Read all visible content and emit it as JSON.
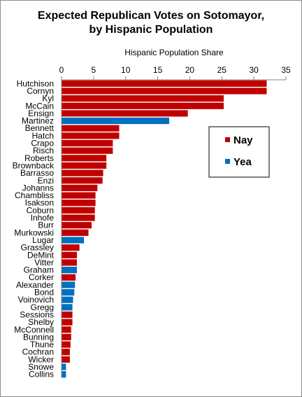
{
  "chart_data": {
    "type": "bar",
    "orientation": "horizontal",
    "title_line1": "Expected Republican Votes on Sotomayor,",
    "title_line2": "by Hispanic Population",
    "xlabel": "Hispanic Population  Share",
    "xlim": [
      0,
      35
    ],
    "xticks": [
      0,
      5,
      10,
      15,
      20,
      25,
      30,
      35
    ],
    "grid": false,
    "legend_position": "right",
    "legend": [
      {
        "key": "Nay",
        "label": "Nay",
        "color": "#c00000"
      },
      {
        "key": "Yea",
        "label": "Yea",
        "color": "#0070c0"
      }
    ],
    "categories": [
      "Hutchison",
      "Cornyn",
      "Kyl",
      "McCain",
      "Ensign",
      "Martinez",
      "Bennett",
      "Hatch",
      "Crapo",
      "Risch",
      "Roberts",
      "Brownback",
      "Barrasso",
      "Enzi",
      "Johanns",
      "Chambliss",
      "Isakson",
      "Coburn",
      "Inhofe",
      "Burr",
      "Murkowski",
      "Lugar",
      "Grassley",
      "DeMint",
      "Vitter",
      "Graham",
      "Corker",
      "Alexander",
      "Bond",
      "Voinovich",
      "Gregg",
      "Sessions",
      "Shelby",
      "McConnell",
      "Bunning",
      "Thune",
      "Cochran",
      "Wicker",
      "Snowe",
      "Collins"
    ],
    "values": [
      32,
      32,
      25.3,
      25.3,
      19.7,
      16.8,
      9.0,
      9.0,
      8.0,
      8.0,
      7.0,
      7.0,
      6.5,
      6.4,
      5.6,
      5.3,
      5.3,
      5.2,
      5.2,
      4.7,
      4.2,
      3.5,
      2.8,
      2.4,
      2.4,
      2.4,
      2.2,
      2.1,
      2.0,
      1.8,
      1.7,
      1.7,
      1.7,
      1.5,
      1.5,
      1.4,
      1.3,
      1.3,
      0.7,
      0.7
    ],
    "votes": [
      "Nay",
      "Nay",
      "Nay",
      "Nay",
      "Nay",
      "Yea",
      "Nay",
      "Nay",
      "Nay",
      "Nay",
      "Nay",
      "Nay",
      "Nay",
      "Nay",
      "Nay",
      "Nay",
      "Nay",
      "Nay",
      "Nay",
      "Nay",
      "Nay",
      "Yea",
      "Nay",
      "Nay",
      "Nay",
      "Yea",
      "Nay",
      "Yea",
      "Yea",
      "Yea",
      "Yea",
      "Nay",
      "Nay",
      "Nay",
      "Nay",
      "Nay",
      "Nay",
      "Nay",
      "Yea",
      "Yea"
    ]
  }
}
